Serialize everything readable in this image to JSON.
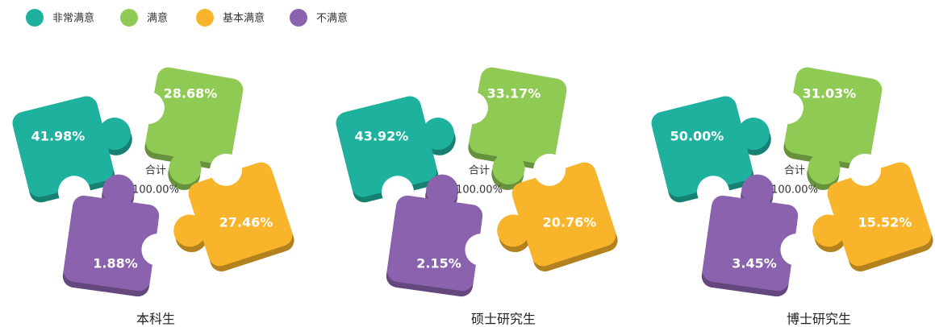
{
  "chart_data": {
    "type": "puzzle",
    "categories": [
      "非常满意",
      "满意",
      "基本满意",
      "不满意"
    ],
    "colors": [
      "#1eb29e",
      "#8fca54",
      "#f8b52b",
      "#8a62ad"
    ],
    "panels": [
      {
        "title": "本科生",
        "total_name": "合计",
        "total": 100,
        "total_label": "100.00%",
        "values": [
          41.98,
          28.68,
          27.46,
          1.88
        ],
        "value_labels": [
          "41.98%",
          "28.68%",
          "27.46%",
          "1.88%"
        ]
      },
      {
        "title": "硕士研究生",
        "total_name": "合计",
        "total": 100,
        "total_label": "100.00%",
        "values": [
          43.92,
          33.17,
          20.76,
          2.15
        ],
        "value_labels": [
          "43.92%",
          "33.17%",
          "20.76%",
          "2.15%"
        ]
      },
      {
        "title": "博士研究生",
        "total_name": "合计",
        "total": 100,
        "total_label": "100.00%",
        "values": [
          50,
          31.03,
          15.52,
          3.45
        ],
        "value_labels": [
          "50.00%",
          "31.03%",
          "15.52%",
          "3.45%"
        ]
      }
    ]
  }
}
